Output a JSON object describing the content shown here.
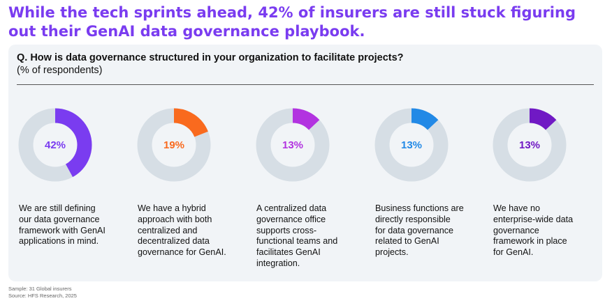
{
  "headline": "While the tech sprints ahead, 42% of insurers are still stuck figuring out their GenAI data governance playbook.",
  "question": "Q. How is data governance structured in your organization to facilitate projects?",
  "subtitle": "(% of respondents)",
  "chart_data": {
    "type": "pie",
    "title": "Q. How is data governance structured in your organization to facilitate projects?",
    "unit": "% of respondents",
    "track_color": "#d6dee5",
    "series": [
      {
        "name": "We are still defining our data governance framework with GenAI applications in mind.",
        "value": 42,
        "label": "42%",
        "color": "#7a3cf0",
        "desc": "We are still defining\nour data governance\nframework with GenAI\napplications in mind."
      },
      {
        "name": "We have a hybrid approach with both centralized and decentralized data governance for GenAI.",
        "value": 19,
        "label": "19%",
        "color": "#f96a1e",
        "desc": "We have a hybrid\napproach with both\ncentralized and\ndecentralized data\ngovernance for GenAI."
      },
      {
        "name": "A centralized data governance office supports cross-functional teams and facilitates GenAI integration.",
        "value": 13,
        "label": "13%",
        "color": "#b233e0",
        "desc": "A centralized data\ngovernance office\nsupports cross-\nfunctional teams and\nfacilitates GenAI\nintegration."
      },
      {
        "name": "Business functions are directly responsible for data governance related to GenAI projects.",
        "value": 13,
        "label": "13%",
        "color": "#2289e6",
        "desc": "Business functions are\ndirectly responsible\nfor data governance\nrelated to GenAI\nprojects."
      },
      {
        "name": "We have no enterprise-wide data governance framework in place for GenAI.",
        "value": 13,
        "label": "13%",
        "color": "#7019c4",
        "desc": "We have no\nenterprise-wide data\ngovernance\nframework in place\nfor GenAI."
      }
    ]
  },
  "footer": {
    "sample": "Sample: 31 Global insurers",
    "source": "Source: HFS Research, 2025"
  }
}
